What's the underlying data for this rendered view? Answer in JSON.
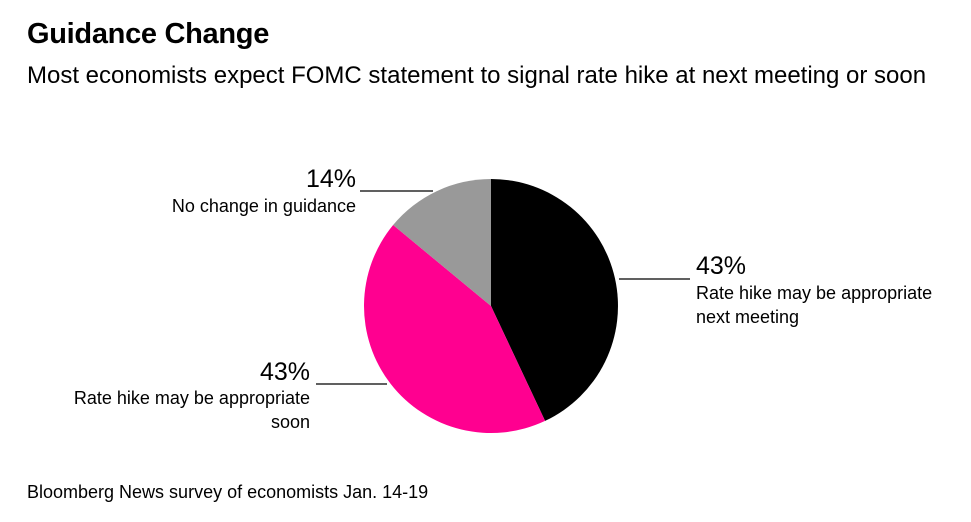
{
  "chart_data": {
    "type": "pie",
    "title": "Guidance Change",
    "subtitle": "Most economists expect FOMC statement to signal rate hike at next meeting or soon",
    "slices": [
      {
        "label": "Rate hike may be appropriate next meeting",
        "label_lines": [
          "Rate hike may be appropriate",
          "next meeting"
        ],
        "pct_label": "43%",
        "value": 43,
        "color": "#000000"
      },
      {
        "label": "Rate hike may be appropriate soon",
        "label_lines": [
          "Rate hike may be appropriate",
          "soon"
        ],
        "pct_label": "43%",
        "value": 43,
        "color": "#ff0090"
      },
      {
        "label": "No change in guidance",
        "label_lines": [
          "No change in guidance"
        ],
        "pct_label": "14%",
        "value": 14,
        "color": "#999999"
      }
    ]
  },
  "source": "Bloomberg News survey of economists Jan. 14-19"
}
